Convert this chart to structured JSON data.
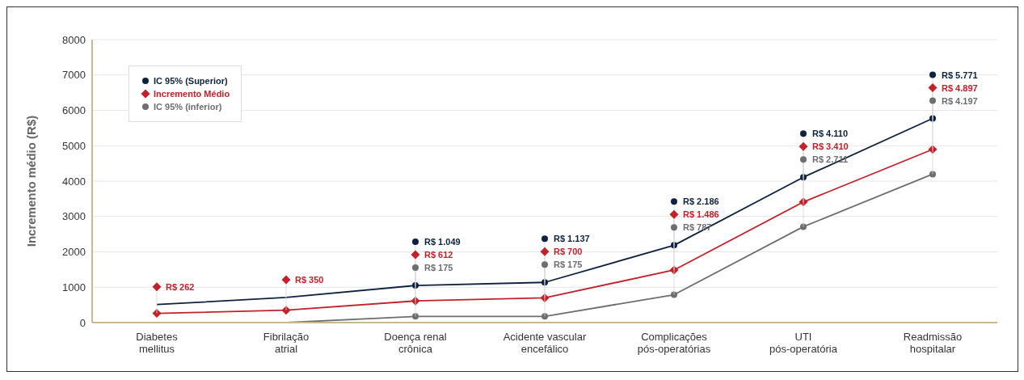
{
  "chart_data": {
    "type": "line",
    "ylabel": "Incremento médio (R$)",
    "categories": [
      "Diabetes\nmellitus",
      "Fibrilação\natrial",
      "Doença renal\ncrônica",
      "Acidente vascular\nencefálico",
      "Complicações\npós-operatórias",
      "UTI\npós-operatória",
      "Readmissão\nhospitalar"
    ],
    "series": [
      {
        "name": "IC 95% (Superior)",
        "color": "#0e2240",
        "marker": "circle",
        "values": [
          510,
          710,
          1049,
          1137,
          2186,
          4110,
          5771
        ],
        "value_labels": [
          null,
          null,
          "R$ 1.049",
          "R$ 1.137",
          "R$ 2.186",
          "R$ 4.110",
          "R$ 5.771"
        ]
      },
      {
        "name": "Incremento Médio",
        "color": "#c4202a",
        "marker": "diamond",
        "values": [
          262,
          350,
          612,
          700,
          1486,
          3410,
          4897
        ],
        "value_labels": [
          "R$ 262",
          "R$ 350",
          "R$ 612",
          "R$ 700",
          "R$ 1.486",
          "R$ 3.410",
          "R$ 4.897"
        ]
      },
      {
        "name": "IC 95% (inferior)",
        "color": "#6d6e71",
        "marker": "circle",
        "values": [
          null,
          0,
          175,
          175,
          787,
          2711,
          4197
        ],
        "value_labels": [
          null,
          null,
          "R$ 175",
          "R$ 175",
          "R$ 787",
          "R$ 2.711",
          "R$ 4.197"
        ]
      }
    ],
    "ylim": [
      0,
      8000
    ],
    "yticks": [
      0,
      1000,
      2000,
      3000,
      4000,
      5000,
      6000,
      7000,
      8000
    ],
    "grid": "y",
    "legend": "top left",
    "line_style": "solid"
  }
}
